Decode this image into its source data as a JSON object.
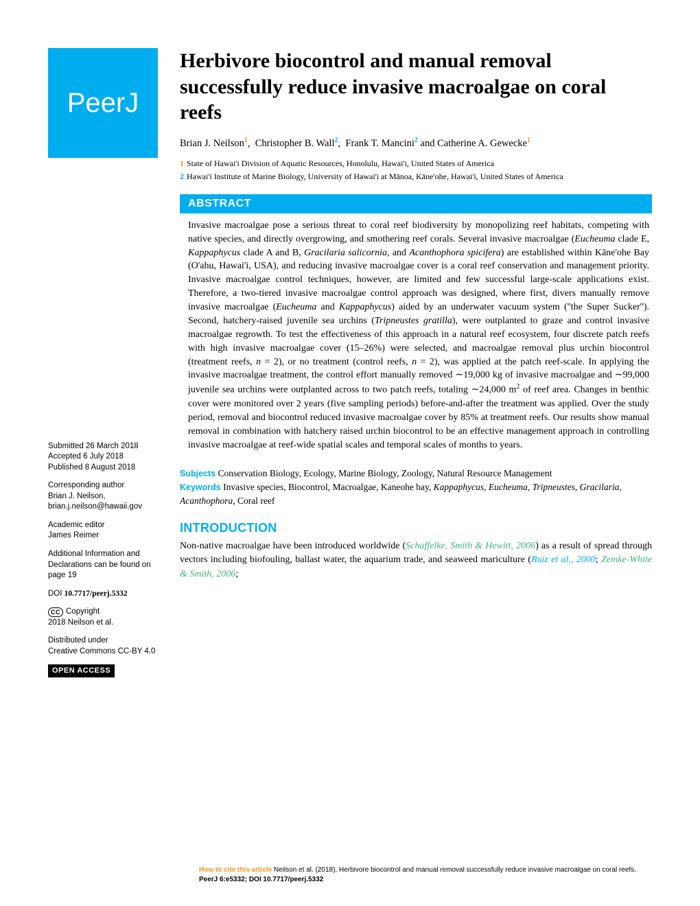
{
  "logo": {
    "text": "PeerJ",
    "bg_color": "#00aeef",
    "text_color": "#ffffff"
  },
  "title": "Herbivore biocontrol and manual removal successfully reduce invasive macroalgae on coral reefs",
  "authors_html": "Brian J. Neilson<sup class='sup1'>1</sup>, Christopher B. Wall<sup class='sup2'>2</sup>, Frank T. Mancini<sup class='sup2'>2</sup> and Catherine A. Gewecke<sup class='sup1'>1</sup>",
  "affiliations": [
    {
      "num": "1",
      "cls": "sup1",
      "text": "State of Hawai'i Division of Aquatic Resources, Honolulu, Hawai'i, United States of America"
    },
    {
      "num": "2",
      "cls": "sup2",
      "text": "Hawai'i Institute of Marine Biology, University of Hawai'i at Mānoa, Kāne'ohe, Hawai'i, United States of America"
    }
  ],
  "sidebar": {
    "submitted_label": "Submitted",
    "submitted": "26 March 2018",
    "accepted_label": "Accepted",
    "accepted": "6 July 2018",
    "published_label": "Published",
    "published": "8 August 2018",
    "corr_label": "Corresponding author",
    "corr_name": "Brian J. Neilson,",
    "corr_email": "brian.j.neilson@hawaii.gov",
    "editor_label": "Academic editor",
    "editor_name": "James Reimer",
    "addl_info": "Additional Information and Declarations can be found on page 19",
    "doi_label": "DOI",
    "doi": "10.7717/peerj.5332",
    "copyright_label": "Copyright",
    "copyright_holder": "2018 Neilson et al.",
    "dist_label": "Distributed under",
    "dist_text": "Creative Commons CC-BY 4.0",
    "open_access": "OPEN ACCESS"
  },
  "abstract": {
    "heading": "ABSTRACT",
    "body_html": "Invasive macroalgae pose a serious threat to coral reef biodiversity by monopolizing reef habitats, competing with native species, and directly overgrowing, and smothering reef corals. Several invasive macroalgae (<em>Eucheuma</em> clade E, <em>Kappaphycus</em> clade A and B, <em>Gracilaria salicornia</em>, and <em>Acanthophora spicifera</em>) are established within Kāne'ohe Bay (O'ahu, Hawai'i, USA), and reducing invasive macroalgae cover is a coral reef conservation and management priority. Invasive macroalgae control techniques, however, are limited and few successful large-scale applications exist. Therefore, a two-tiered invasive macroalgae control approach was designed, where first, divers manually remove invasive macroalgae (<em>Eucheuma</em> and <em>Kappaphycus</em>) aided by an underwater vacuum system (''the Super Sucker''). Second, hatchery-raised juvenile sea urchins (<em>Tripneustes gratilla</em>), were outplanted to graze and control invasive macroalgae regrowth. To test the effectiveness of this approach in a natural reef ecosystem, four discrete patch reefs with high invasive macroalgae cover (15–26%) were selected, and macroalgae removal plus urchin biocontrol (treatment reefs, <em>n</em> = 2), or no treatment (control reefs, <em>n</em> = 2), was applied at the patch reef-scale. In applying the invasive macroalgae treatment, the control effort manually removed ∼19,000 kg of invasive macroalgae and ∼99,000 juvenile sea urchins were outplanted across to two patch reefs, totaling ∼24,000 m<span class='sup'>2</span> of reef area. Changes in benthic cover were monitored over 2 years (five sampling periods) before-and-after the treatment was applied. Over the study period, removal and biocontrol reduced invasive macroalgae cover by 85% at treatment reefs. Our results show manual removal in combination with hatchery raised urchin biocontrol to be an effective management approach in controlling invasive macroalgae at reef-wide spatial scales and temporal scales of months to years."
  },
  "subjects": {
    "label": "Subjects",
    "text": "Conservation Biology, Ecology, Marine Biology, Zoology, Natural Resource Management"
  },
  "keywords": {
    "label": "Keywords",
    "text_html": "Invasive species, Biocontrol, Macroalgae, Kaneohe bay, <em>Kappaphycus</em>, <em>Eucheuma</em>, <em>Tripneustes</em>, <em>Gracilaria</em>, <em>Acanthophora</em>, Coral reef"
  },
  "intro": {
    "heading": "INTRODUCTION",
    "body_html": "Non-native macroalgae have been introduced worldwide (<span class='cite-link'>Schaffelke, Smith & Hewitt, 2006</span>) as a result of spread through vectors including biofouling, ballast water, the aquarium trade, and seaweed mariculture (<span class='cite-link2'>Ruiz et al., 2000</span>; <span class='cite-link'>Zemke-White & Smith, 2006</span>;"
  },
  "footer": {
    "how_label": "How to cite this article",
    "text": "Neilson et al. (2018), Herbivore biocontrol and manual removal successfully reduce invasive macroalgae on coral reefs.",
    "journal": "PeerJ 6:e5332; DOI 10.7717/peerj.5332"
  },
  "colors": {
    "brand_blue": "#00aeef",
    "accent_orange": "#f7931e",
    "cite_green": "#3fb37f",
    "text": "#000000",
    "bg": "#ffffff"
  },
  "typography": {
    "title_fontsize": 30,
    "body_fontsize": 14,
    "sidebar_fontsize": 11.5,
    "footer_fontsize": 10
  }
}
